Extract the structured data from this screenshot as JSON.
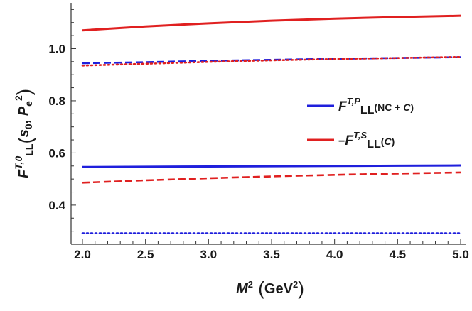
{
  "chart_data": {
    "type": "line",
    "xlim": [
      2.0,
      5.0
    ],
    "ylim": [
      0.25,
      1.17
    ],
    "x_ticks": [
      2.0,
      2.5,
      3.0,
      3.5,
      4.0,
      4.5,
      5.0
    ],
    "x_tick_labels": [
      "2.0",
      "2.5",
      "3.0",
      "3.5",
      "4.0",
      "4.5",
      "5.0"
    ],
    "y_ticks": [
      0.4,
      0.6,
      0.8,
      1.0
    ],
    "y_tick_labels": [
      "0.4",
      "0.6",
      "0.8",
      "1.0"
    ],
    "x_minor_step": 0.1,
    "y_minor_step": 0.05,
    "grid": false,
    "xlabel": {
      "main": "M",
      "sup": "2",
      "unit": "GeV",
      "unit_sup": "2"
    },
    "ylabel": {
      "main": "F",
      "sup": "T,0",
      "sub": "LL",
      "arg1": "s",
      "arg1_sub": "0",
      "arg2": "P",
      "arg2_sub": "e",
      "arg2_sup": "2"
    },
    "legend_position": "right",
    "legend": [
      {
        "color": "#1f1fdc",
        "prefix": "",
        "F": "F",
        "sup": "T,P",
        "sub": "LL",
        "suffix": "(NC + ",
        "suffix_it": "C",
        "suffix_end": ")"
      },
      {
        "color": "#e02020",
        "prefix": "−",
        "F": "F",
        "sup": "T,S",
        "sub": "LL",
        "suffix": "(",
        "suffix_it": "C",
        "suffix_end": ")"
      }
    ],
    "x": [
      2.0,
      2.5,
      3.0,
      3.5,
      4.0,
      4.5,
      5.0
    ],
    "series": [
      {
        "color": "#e02020",
        "style": "solid",
        "values": [
          1.07,
          1.085,
          1.097,
          1.107,
          1.115,
          1.121,
          1.126
        ]
      },
      {
        "color": "#1f1fdc",
        "style": "dashed",
        "values": [
          0.944,
          0.948,
          0.953,
          0.957,
          0.961,
          0.964,
          0.967
        ]
      },
      {
        "color": "#e02020",
        "style": "dotted",
        "values": [
          0.935,
          0.942,
          0.949,
          0.955,
          0.96,
          0.964,
          0.968
        ]
      },
      {
        "color": "#1f1fdc",
        "style": "solid",
        "values": [
          0.546,
          0.547,
          0.548,
          0.549,
          0.55,
          0.551,
          0.552
        ]
      },
      {
        "color": "#e02020",
        "style": "dashed",
        "values": [
          0.486,
          0.495,
          0.503,
          0.51,
          0.516,
          0.521,
          0.525
        ]
      },
      {
        "color": "#1f1fdc",
        "style": "dotted",
        "values": [
          0.292,
          0.292,
          0.292,
          0.292,
          0.292,
          0.292,
          0.292
        ]
      }
    ]
  }
}
